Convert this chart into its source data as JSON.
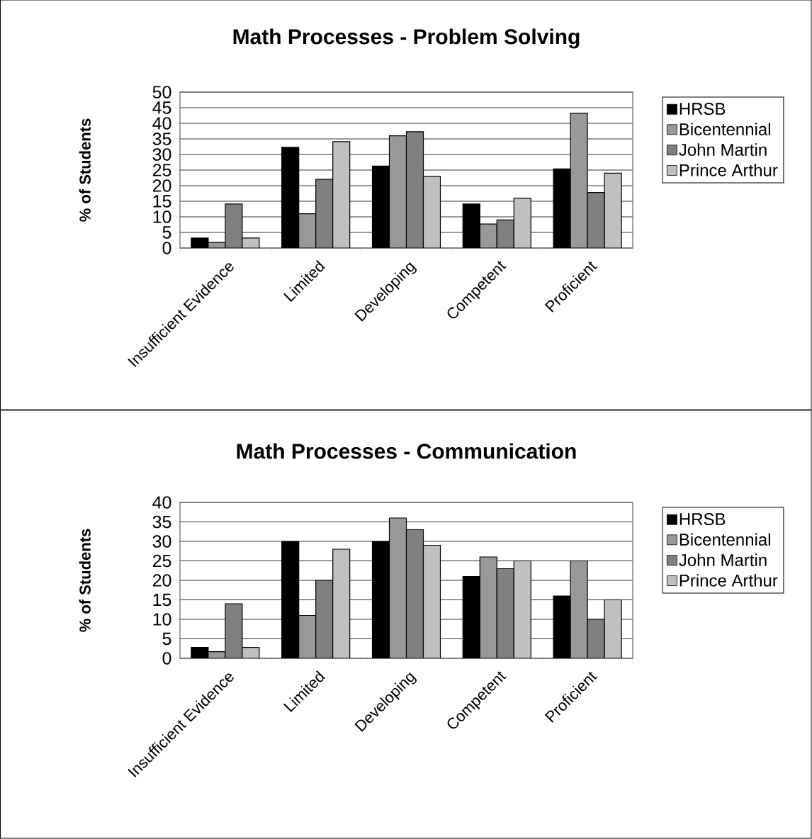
{
  "chart_data": [
    {
      "type": "bar",
      "title": "Math Processes - Problem Solving",
      "ylabel": "% of Students",
      "categories": [
        "Insufficient Evidence",
        "Limited",
        "Developing",
        "Competent",
        "Proficient"
      ],
      "series": [
        {
          "name": "HRSB",
          "color": "#000000",
          "values": [
            3.2,
            32.3,
            26.3,
            14.1,
            25.4
          ]
        },
        {
          "name": "Bicentennial",
          "color": "#999999",
          "values": [
            1.8,
            11,
            36,
            7.7,
            43.2
          ]
        },
        {
          "name": "John Martin",
          "color": "#808080",
          "values": [
            14.1,
            22,
            37.3,
            9,
            17.8
          ]
        },
        {
          "name": "Prince Arthur",
          "color": "#c0c0c0",
          "values": [
            3.2,
            34.1,
            23,
            16,
            24
          ]
        }
      ],
      "ylim": [
        0,
        50
      ],
      "yticks": [
        0,
        5,
        10,
        15,
        20,
        25,
        30,
        35,
        40,
        45,
        50
      ],
      "grid": "y",
      "legend": "right"
    },
    {
      "type": "bar",
      "title": "Math Processes - Communication",
      "ylabel": "% of Students",
      "categories": [
        "Insufficient Evidence",
        "Limited",
        "Developing",
        "Competent",
        "Proficient"
      ],
      "series": [
        {
          "name": "HRSB",
          "color": "#000000",
          "values": [
            2.8,
            30,
            30,
            21,
            16
          ]
        },
        {
          "name": "Bicentennial",
          "color": "#999999",
          "values": [
            1.7,
            11,
            36,
            26,
            25
          ]
        },
        {
          "name": "John Martin",
          "color": "#808080",
          "values": [
            14,
            20,
            33,
            23,
            10
          ]
        },
        {
          "name": "Prince Arthur",
          "color": "#c0c0c0",
          "values": [
            2.8,
            28,
            29,
            25,
            15
          ]
        }
      ],
      "ylim": [
        0,
        40
      ],
      "yticks": [
        0,
        5,
        10,
        15,
        20,
        25,
        30,
        35,
        40
      ],
      "grid": "y",
      "legend": "right"
    }
  ]
}
